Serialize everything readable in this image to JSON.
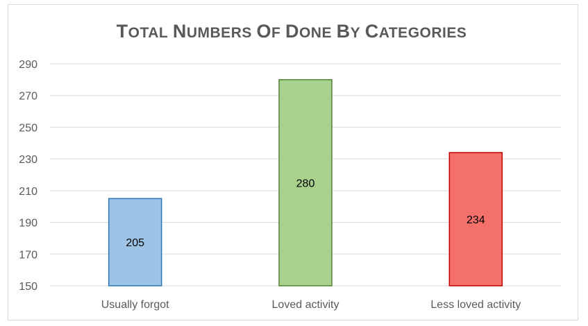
{
  "chart_data": {
    "type": "bar",
    "title": "Total numbers of done by categories",
    "categories": [
      "Usually forgot",
      "Loved activity",
      "Less loved activity"
    ],
    "values": [
      205,
      280,
      234
    ],
    "value_labels": [
      "205",
      "280",
      "234"
    ],
    "ylim": [
      150,
      290
    ],
    "yticks": [
      150,
      170,
      190,
      210,
      230,
      250,
      270,
      290
    ],
    "xlabel": "",
    "ylabel": "",
    "grid": true,
    "legend": "none",
    "colors": {
      "fills": [
        "#9dc3e6",
        "#a9d18e",
        "#f4706a"
      ],
      "strokes": [
        "#2e75b6",
        "#548235",
        "#c00000"
      ],
      "grid": "#d9d9d9",
      "text": "#595959"
    }
  }
}
